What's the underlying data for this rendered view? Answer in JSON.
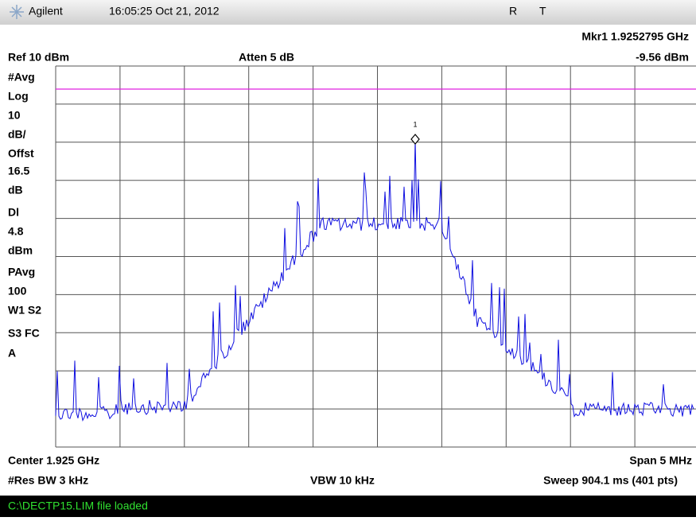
{
  "header": {
    "brand": "Agilent",
    "datetime": "16:05:25 Oct 21, 2012",
    "flags": [
      "R",
      "T"
    ]
  },
  "marker": {
    "readout": "Mkr1 1.9252795 GHz",
    "level": "-9.56 dBm",
    "id": "1"
  },
  "settings": {
    "ref": "Ref 10 dBm",
    "atten": "Atten 5 dB"
  },
  "left_annotations": [
    "#Avg",
    "Log",
    "10",
    "dB/",
    "Offst",
    "16.5",
    "dB",
    "Dl",
    "4.8",
    "dBm",
    "PAvg",
    "100",
    "W1 S2",
    "S3 FC",
    "A"
  ],
  "footer": {
    "center": "Center 1.925 GHz",
    "span": "Span 5 MHz",
    "res_bw": "#Res BW 3 kHz",
    "vbw": "VBW 10 kHz",
    "sweep": "Sweep 904.1 ms (401 pts)"
  },
  "status": "C:\\DECTP15.LIM file loaded"
}
